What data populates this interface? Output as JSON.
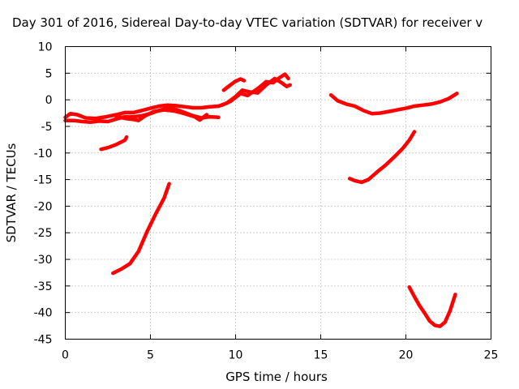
{
  "chart_data": {
    "type": "line",
    "title": "Day 301 of 2016, Sidereal Day-to-day VTEC variation (SDTVAR) for receiver v",
    "xlabel": "GPS time / hours",
    "ylabel": "SDTVAR / TECUs",
    "xlim": [
      0,
      25
    ],
    "ylim": [
      -45,
      10
    ],
    "xticks": [
      "0",
      "5",
      "10",
      "15",
      "20",
      "25"
    ],
    "yticks": [
      "10",
      "5",
      "0",
      "-5",
      "-10",
      "-15",
      "-20",
      "-25",
      "-30",
      "-35",
      "-40",
      "-45"
    ],
    "grid": true,
    "series": [
      {
        "color": "#ff0000",
        "points": [
          [
            0,
            -3.3
          ],
          [
            0.3,
            -2.6
          ],
          [
            0.7,
            -2.8
          ],
          [
            1.2,
            -3.4
          ],
          [
            1.8,
            -3.5
          ],
          [
            2.4,
            -3.2
          ],
          [
            3.0,
            -2.8
          ],
          [
            3.5,
            -2.4
          ],
          [
            4.0,
            -2.4
          ],
          [
            4.5,
            -2.0
          ],
          [
            5.0,
            -1.6
          ],
          [
            5.5,
            -1.2
          ],
          [
            6.0,
            -1.0
          ],
          [
            6.5,
            -1.1
          ],
          [
            7.0,
            -1.3
          ],
          [
            7.5,
            -1.5
          ],
          [
            8.0,
            -1.5
          ],
          [
            8.5,
            -1.3
          ],
          [
            9.0,
            -1.2
          ]
        ]
      },
      {
        "color": "#ff0000",
        "points": [
          [
            0,
            -3.9
          ],
          [
            0.5,
            -3.9
          ],
          [
            1.0,
            -4.1
          ],
          [
            1.5,
            -4.2
          ],
          [
            2.0,
            -4.0
          ],
          [
            2.5,
            -4.1
          ],
          [
            3.0,
            -3.6
          ],
          [
            3.5,
            -3.2
          ],
          [
            4.0,
            -3.2
          ],
          [
            4.5,
            -3.0
          ],
          [
            5.0,
            -2.6
          ],
          [
            5.5,
            -2.0
          ],
          [
            6.0,
            -1.6
          ],
          [
            6.5,
            -1.8
          ],
          [
            7.0,
            -2.4
          ],
          [
            7.5,
            -3.0
          ],
          [
            8.0,
            -3.4
          ],
          [
            8.5,
            -3.2
          ],
          [
            9.0,
            -3.3
          ]
        ]
      },
      {
        "color": "#ff0000",
        "points": [
          [
            3.0,
            -3.1
          ],
          [
            3.5,
            -3.5
          ],
          [
            4.0,
            -3.7
          ],
          [
            4.3,
            -3.9
          ],
          [
            4.7,
            -3.0
          ],
          [
            5.2,
            -2.2
          ],
          [
            5.8,
            -1.9
          ],
          [
            6.4,
            -2.1
          ],
          [
            7.0,
            -2.6
          ],
          [
            7.6,
            -3.2
          ],
          [
            7.9,
            -3.8
          ],
          [
            8.3,
            -2.8
          ]
        ]
      },
      {
        "color": "#ff0000",
        "points": [
          [
            2.1,
            -9.3
          ],
          [
            2.5,
            -9.0
          ],
          [
            3.0,
            -8.4
          ],
          [
            3.5,
            -7.6
          ],
          [
            3.6,
            -7.0
          ]
        ]
      },
      {
        "color": "#ff0000",
        "points": [
          [
            2.8,
            -32.6
          ],
          [
            3.3,
            -31.8
          ],
          [
            3.8,
            -30.8
          ],
          [
            4.3,
            -28.5
          ],
          [
            4.8,
            -24.8
          ],
          [
            5.3,
            -21.5
          ],
          [
            5.8,
            -18.5
          ],
          [
            6.1,
            -15.8
          ]
        ]
      },
      {
        "color": "#ff0000",
        "points": [
          [
            9.3,
            1.8
          ],
          [
            9.7,
            2.8
          ],
          [
            10.0,
            3.5
          ],
          [
            10.3,
            3.9
          ],
          [
            10.5,
            3.6
          ]
        ]
      },
      {
        "color": "#ff0000",
        "points": [
          [
            9.0,
            -1.2
          ],
          [
            9.5,
            -0.6
          ],
          [
            10.0,
            0.6
          ],
          [
            10.4,
            1.8
          ],
          [
            10.8,
            1.5
          ],
          [
            11.3,
            1.3
          ],
          [
            11.8,
            2.8
          ],
          [
            12.3,
            4.0
          ],
          [
            12.7,
            3.2
          ],
          [
            13.0,
            2.5
          ],
          [
            13.2,
            2.8
          ]
        ]
      },
      {
        "color": "#ff0000",
        "points": [
          [
            9.2,
            -1.0
          ],
          [
            9.7,
            -0.3
          ],
          [
            10.3,
            1.2
          ],
          [
            10.7,
            0.8
          ],
          [
            11.3,
            2.1
          ],
          [
            11.8,
            3.4
          ],
          [
            12.2,
            3.2
          ],
          [
            12.6,
            4.2
          ],
          [
            12.9,
            4.8
          ],
          [
            13.1,
            4.0
          ]
        ]
      },
      {
        "color": "#ff0000",
        "points": [
          [
            15.6,
            0.9
          ],
          [
            16.0,
            -0.2
          ],
          [
            16.5,
            -0.8
          ],
          [
            17.0,
            -1.2
          ],
          [
            17.5,
            -2.0
          ],
          [
            18.0,
            -2.6
          ],
          [
            18.5,
            -2.5
          ],
          [
            19.0,
            -2.2
          ],
          [
            19.5,
            -1.9
          ],
          [
            20.0,
            -1.6
          ],
          [
            20.5,
            -1.2
          ],
          [
            21.0,
            -1.0
          ],
          [
            21.5,
            -0.8
          ],
          [
            22.0,
            -0.4
          ],
          [
            22.5,
            0.2
          ],
          [
            23.0,
            1.2
          ]
        ]
      },
      {
        "color": "#ff0000",
        "points": [
          [
            16.7,
            -14.8
          ],
          [
            17.0,
            -15.2
          ],
          [
            17.4,
            -15.5
          ],
          [
            17.8,
            -15.0
          ],
          [
            18.3,
            -13.6
          ],
          [
            18.8,
            -12.3
          ],
          [
            19.3,
            -10.8
          ],
          [
            19.8,
            -9.2
          ],
          [
            20.2,
            -7.6
          ],
          [
            20.5,
            -6.0
          ]
        ]
      },
      {
        "color": "#ff0000",
        "points": [
          [
            20.2,
            -35.2
          ],
          [
            20.5,
            -37.0
          ],
          [
            20.8,
            -38.7
          ],
          [
            21.1,
            -40.1
          ],
          [
            21.4,
            -41.6
          ],
          [
            21.7,
            -42.4
          ],
          [
            22.0,
            -42.6
          ],
          [
            22.3,
            -41.8
          ],
          [
            22.6,
            -39.6
          ],
          [
            22.9,
            -36.6
          ]
        ]
      }
    ]
  }
}
